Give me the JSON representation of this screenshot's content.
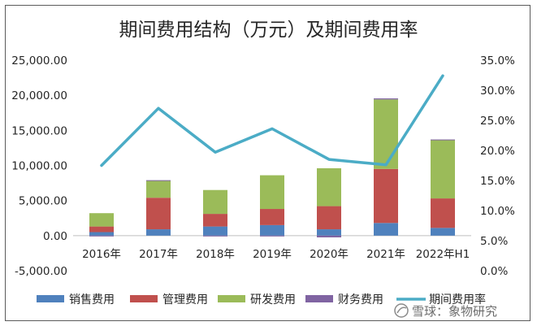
{
  "chart_data": {
    "type": "bar",
    "title": "期间费用结构（万元）及期间费用率",
    "categories": [
      "2016年",
      "2017年",
      "2018年",
      "2019年",
      "2020年",
      "2021年",
      "2022年H1"
    ],
    "stacked": true,
    "series": [
      {
        "name": "销售费用",
        "kind": "bar",
        "axis": "left",
        "color": "#4f81bd",
        "values": [
          500,
          900,
          1300,
          1500,
          900,
          1800,
          1100
        ]
      },
      {
        "name": "管理费用",
        "kind": "bar",
        "axis": "left",
        "color": "#c0504d",
        "values": [
          800,
          4500,
          1800,
          2300,
          3300,
          7700,
          4200
        ]
      },
      {
        "name": "研发费用",
        "kind": "bar",
        "axis": "left",
        "color": "#9bbb59",
        "values": [
          1900,
          2400,
          3400,
          4800,
          5400,
          9900,
          8300
        ]
      },
      {
        "name": "财务费用",
        "kind": "bar",
        "axis": "left",
        "color": "#8064a2",
        "values": [
          -50,
          100,
          -100,
          -50,
          -250,
          150,
          100
        ]
      },
      {
        "name": "期间费用率",
        "kind": "line",
        "axis": "right",
        "color": "#4bacc6",
        "values": [
          0.175,
          0.27,
          0.197,
          0.236,
          0.185,
          0.176,
          0.324
        ]
      }
    ],
    "ylim_left": [
      -5000,
      25000
    ],
    "yticks_left": [
      -5000,
      0,
      5000,
      10000,
      15000,
      20000,
      25000
    ],
    "ytick_labels_left": [
      "-5,000.00",
      "0.00",
      "5,000.00",
      "10,000.00",
      "15,000.00",
      "20,000.00",
      "25,000.00"
    ],
    "ylim_right": [
      0,
      0.35
    ],
    "yticks_right": [
      0,
      0.05,
      0.1,
      0.15,
      0.2,
      0.25,
      0.3,
      0.35
    ],
    "ytick_labels_right": [
      "0.0%",
      "5.0%",
      "10.0%",
      "15.0%",
      "20.0%",
      "25.0%",
      "30.0%",
      "35.0%"
    ],
    "legend_position": "bottom",
    "grid": false
  },
  "watermark": "雪球：象物研究"
}
